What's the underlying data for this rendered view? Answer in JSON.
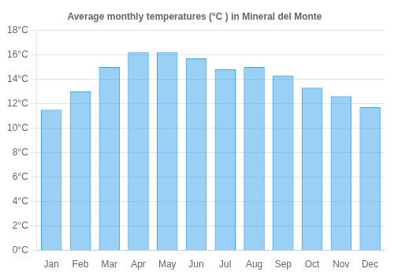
{
  "chart_data": {
    "type": "bar",
    "title": "Average monthly temperatures (°C ) in Mineral del Monte",
    "categories": [
      "Jan",
      "Feb",
      "Mar",
      "Apr",
      "May",
      "Jun",
      "Jul",
      "Aug",
      "Sep",
      "Oct",
      "Nov",
      "Dec"
    ],
    "values": [
      11.5,
      13.0,
      15.0,
      16.2,
      16.2,
      15.7,
      14.8,
      15.0,
      14.3,
      13.3,
      12.6,
      11.7
    ],
    "ylim": [
      0,
      18
    ],
    "yticks": [
      {
        "value": 0,
        "label": "0°C"
      },
      {
        "value": 2,
        "label": "2°C"
      },
      {
        "value": 4,
        "label": "4°C"
      },
      {
        "value": 6,
        "label": "6°C"
      },
      {
        "value": 8,
        "label": "8°C"
      },
      {
        "value": 10,
        "label": "10°C"
      },
      {
        "value": 12,
        "label": "12°C"
      },
      {
        "value": 14,
        "label": "14°C"
      },
      {
        "value": 16,
        "label": "16°C"
      },
      {
        "value": 18,
        "label": "18°C"
      }
    ],
    "grid": true
  }
}
